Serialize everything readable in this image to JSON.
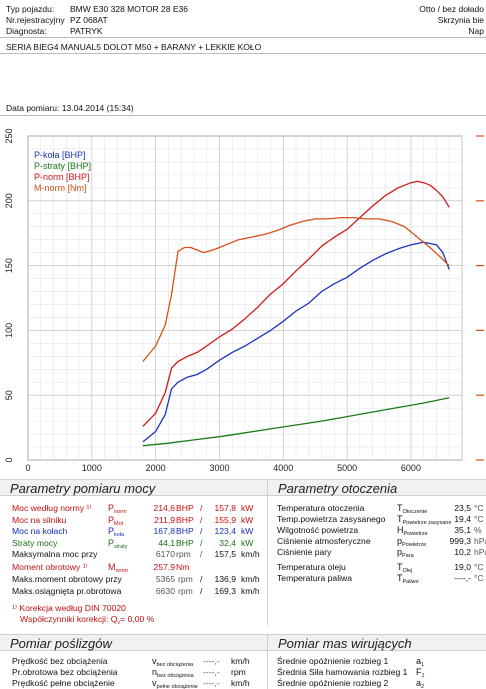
{
  "header": {
    "vehicle_label": "Typ pojazdu:",
    "vehicle_value": "BMW E30 328 MOTOR 28 E36",
    "reg_label": "Nr.rejestracyjny",
    "reg_value": "PZ 068AT",
    "diag_label": "Diagnosta:",
    "diag_value": "PATRYK",
    "right1": "Otto / bez dołado",
    "right2": "Skrzynia bie",
    "right3": "Nap",
    "description": "SERIA BIEG4 MANUAL5 DOLOT M50 + BARANY + LEKKIE KOŁO",
    "date": "Data pomiaru: 13.04.2014 (15:34)"
  },
  "chart_data": {
    "type": "line",
    "xlim": [
      0,
      6800
    ],
    "ylim": [
      0,
      250
    ],
    "x_ticks": [
      "0",
      "1000",
      "2000",
      "3000",
      "4000",
      "5000",
      "6000"
    ],
    "y_ticks": [
      "0",
      "50",
      "100",
      "150",
      "200",
      "250"
    ],
    "legend_position": "top-left",
    "series": [
      {
        "name": "P-koła [BHP]",
        "color": "#1a33c0",
        "x": [
          1800,
          2000,
          2150,
          2250,
          2350,
          2500,
          2650,
          2800,
          3000,
          3200,
          3400,
          3600,
          3800,
          4000,
          4200,
          4400,
          4600,
          4800,
          5000,
          5200,
          5400,
          5600,
          5800,
          6000,
          6200,
          6400,
          6500,
          6600
        ],
        "y": [
          14,
          22,
          35,
          55,
          60,
          64,
          66,
          70,
          77,
          83,
          88,
          94,
          100,
          107,
          115,
          121,
          130,
          136,
          141,
          148,
          154,
          159,
          163,
          166,
          168,
          166,
          160,
          147
        ]
      },
      {
        "name": "P-straty [BHP]",
        "color": "#1a7a1a",
        "x": [
          1800,
          2200,
          2600,
          3000,
          3400,
          3800,
          4200,
          4600,
          5000,
          5400,
          5800,
          6200,
          6600
        ],
        "y": [
          11,
          13,
          15.5,
          18,
          21,
          24,
          27,
          30,
          33.5,
          37,
          40.5,
          44,
          48
        ]
      },
      {
        "name": "P-norm [BHP]",
        "color": "#d01818",
        "x": [
          1800,
          2000,
          2150,
          2250,
          2350,
          2500,
          2650,
          2800,
          3000,
          3200,
          3400,
          3600,
          3800,
          4000,
          4200,
          4400,
          4600,
          4800,
          5000,
          5200,
          5400,
          5600,
          5800,
          6000,
          6100,
          6200,
          6300,
          6400,
          6500,
          6600
        ],
        "y": [
          26,
          36,
          52,
          71,
          76,
          80,
          83,
          88,
          95,
          101,
          109,
          118,
          128,
          136,
          146,
          155,
          165,
          172,
          178,
          187,
          196,
          204,
          210,
          214,
          215,
          214,
          212,
          208,
          203,
          195
        ]
      },
      {
        "name": "M-norm [Nm]",
        "color": "#d85018",
        "x": [
          1800,
          2000,
          2150,
          2250,
          2350,
          2450,
          2550,
          2650,
          2750,
          2900,
          3100,
          3300,
          3500,
          3700,
          3900,
          4100,
          4300,
          4500,
          4700,
          4900,
          5100,
          5300,
          5500,
          5700,
          5900,
          6100,
          6300,
          6450,
          6600
        ],
        "y": [
          76,
          88,
          104,
          128,
          161,
          164,
          164,
          162,
          160,
          162,
          166,
          170,
          172,
          174,
          177,
          181,
          184,
          186,
          186,
          187,
          187,
          186,
          186,
          184,
          180,
          172,
          164,
          157,
          150
        ]
      }
    ],
    "torque_scale_note": "M-norm plotted against the right-hand (orange) torque axis"
  },
  "left_panel": {
    "title": "Parametry pomiaru mocy",
    "rows": [
      {
        "label": "Moc według normy ¹⁾",
        "sym": "P",
        "sub": "norm",
        "v1": "214,6",
        "u1": "BHP",
        "v2": "157,8",
        "u2": "kW",
        "color": "red"
      },
      {
        "label": "Moc na silniku",
        "sym": "P",
        "sub": "Mot",
        "v1": "211,9",
        "u1": "BHP",
        "v2": "155,9",
        "u2": "kW",
        "color": "red"
      },
      {
        "label": "Moc na kołach",
        "sym": "P",
        "sub": "koła",
        "v1": "167,8",
        "u1": "BHP",
        "v2": "123,4",
        "u2": "kW",
        "color": "blue"
      },
      {
        "label": "Straty mocy",
        "sym": "P",
        "sub": "straty",
        "v1": "44,1",
        "u1": "BHP",
        "v2": "32,4",
        "u2": "kW",
        "color": "green"
      },
      {
        "label": "Maksymalna moc przy",
        "sym": "",
        "sub": "",
        "v1": "6170",
        "u1": "rpm",
        "v2": "157,5",
        "u2": "km/h",
        "color": "black"
      }
    ],
    "torque_label": "Moment obrotowy ¹⁾",
    "torque_sym": "M",
    "torque_sub": "norm",
    "torque_value": "257,9",
    "torque_unit": "Nm",
    "max_torque_label": "Maks.moment obrotowy przy",
    "max_torque_rpm": "5365",
    "max_torque_speed": "136,9",
    "max_rpm_label": "Maks.osiągnięta pr.obrotowa",
    "max_rpm": "6630",
    "max_rpm_speed": "169,3",
    "rpm_unit": "rpm",
    "speed_unit": "km/h",
    "correction_label": "¹⁾ Korekcja według DIN 70020",
    "factors_label": "Współczynniki korekcji: Q",
    "factors_sub": "v",
    "factors_value": "= 0,00 %"
  },
  "right_panel": {
    "title": "Parametry otoczenia",
    "rows": [
      {
        "label": "Temperatura otoczenia",
        "sym": "T",
        "sub": "Otoczenie",
        "value": "23,5",
        "unit": "°C"
      },
      {
        "label": "Temp.powietrza zasysanego",
        "sym": "T",
        "sub": "Powietrze zasysane",
        "value": "19,4",
        "unit": "°C"
      },
      {
        "label": "Wilgotność powietrza",
        "sym": "H",
        "sub": "Powietrze",
        "value": "35,1",
        "unit": "%"
      },
      {
        "label": "Ciśnienie atmosferyczne",
        "sym": "p",
        "sub": "Powietrze",
        "value": "999,3",
        "unit": "hPa"
      },
      {
        "label": "Ciśnienie pary",
        "sym": "p",
        "sub": "Para",
        "value": "10,2",
        "unit": "hPa"
      },
      {
        "label": "Temperatura oleju",
        "sym": "T",
        "sub": "Olej",
        "value": "19,0",
        "unit": "°C"
      },
      {
        "label": "Temperatura paliwa",
        "sym": "T",
        "sub": "Paliwo",
        "value": "----,-",
        "unit": "°C"
      }
    ]
  },
  "slip_panel": {
    "title": "Pomiar poślizgów",
    "rows": [
      {
        "label": "Prędkość bez obciążenia",
        "sym": "v",
        "sub": "bez obciążenia",
        "value": "----,-",
        "unit": "km/h"
      },
      {
        "label": "Pr.obrotowa bez obciążenia",
        "sym": "n",
        "sub": "bez obciążenia",
        "value": "----,-",
        "unit": "rpm"
      },
      {
        "label": "Prędkość pełne obciążenie",
        "sym": "v",
        "sub": "pełne obciążenie",
        "value": "----,-",
        "unit": "km/h"
      }
    ]
  },
  "mass_panel": {
    "title": "Pomiar mas wirujących",
    "rows": [
      {
        "label": "Średnie opóźnienie rozbieg 1",
        "sym": "a",
        "sub": "1"
      },
      {
        "label": "Średnia Siła hamowania rozbieg 1",
        "sym": "F",
        "sub": "1"
      },
      {
        "label": "Średnie opóźnienie rozbieg 2",
        "sym": "a",
        "sub": "2"
      }
    ]
  }
}
